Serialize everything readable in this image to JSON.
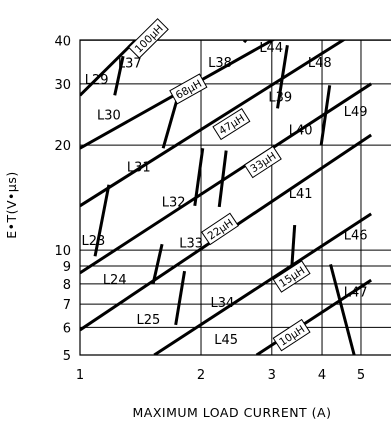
{
  "chart_data": {
    "type": "nomograph",
    "xlabel": "MAXIMUM LOAD CURRENT (A)",
    "ylabel": "E•T(V•µs)",
    "x_scale": "log",
    "y_scale": "log",
    "xlim": [
      1,
      5
    ],
    "ylim": [
      5,
      40
    ],
    "x_ticks": [
      {
        "value": 1,
        "label": "1"
      },
      {
        "value": 2,
        "label": "2"
      },
      {
        "value": 3,
        "label": "3"
      },
      {
        "value": 4,
        "label": "4"
      },
      {
        "value": 5,
        "label": "5"
      }
    ],
    "y_ticks": [
      {
        "value": 5,
        "label": "5"
      },
      {
        "value": 6,
        "label": "6"
      },
      {
        "value": 7,
        "label": "7"
      },
      {
        "value": 8,
        "label": "8"
      },
      {
        "value": 9,
        "label": "9"
      },
      {
        "value": 10,
        "label": "10"
      },
      {
        "value": 20,
        "label": "20"
      },
      {
        "value": 30,
        "label": "30"
      },
      {
        "value": 40,
        "label": "40"
      }
    ],
    "grid": true,
    "inductance_lines": [
      {
        "label": "100µH",
        "from": [
          1.0,
          27.8
        ],
        "to": [
          1.45,
          42.5
        ],
        "label_at": [
          1.48,
          40.5
        ]
      },
      {
        "label": "68µH",
        "from": [
          1.0,
          19.6
        ],
        "to": [
          3.3,
          42.5
        ],
        "label_at": [
          1.86,
          29.0
        ]
      },
      {
        "label": "47µH",
        "from": [
          1.0,
          13.4
        ],
        "to": [
          4.9,
          42.5
        ],
        "label_at": [
          2.38,
          23.0
        ]
      },
      {
        "label": "33µH",
        "from": [
          1.0,
          8.6
        ],
        "to": [
          5.3,
          30.0
        ],
        "label_at": [
          2.85,
          17.9
        ]
      },
      {
        "label": "22µH",
        "from": [
          1.0,
          5.9
        ],
        "to": [
          5.3,
          21.4
        ],
        "label_at": [
          2.23,
          11.5
        ]
      },
      {
        "label": "15µH",
        "from": [
          1.53,
          5.0
        ],
        "to": [
          5.3,
          12.7
        ],
        "label_at": [
          3.36,
          8.4
        ]
      },
      {
        "label": "10µH",
        "from": [
          2.75,
          5.0
        ],
        "to": [
          5.3,
          8.2
        ],
        "label_at": [
          3.36,
          5.7
        ]
      }
    ],
    "region_dividers": [
      {
        "from": [
          1.22,
          27.8
        ],
        "to": [
          1.28,
          36.0
        ]
      },
      {
        "from": [
          1.61,
          19.6
        ],
        "to": [
          1.78,
          29.4
        ]
      },
      {
        "from": [
          2.56,
          39.5
        ],
        "to": [
          2.7,
          42.5
        ]
      },
      {
        "from": [
          1.93,
          13.4
        ],
        "to": [
          2.02,
          19.6
        ]
      },
      {
        "from": [
          3.1,
          25.5
        ],
        "to": [
          3.28,
          38.7
        ]
      },
      {
        "from": [
          2.22,
          13.3
        ],
        "to": [
          2.31,
          19.3
        ]
      },
      {
        "from": [
          3.98,
          20.0
        ],
        "to": [
          4.18,
          29.7
        ]
      },
      {
        "from": [
          1.09,
          9.6
        ],
        "to": [
          1.18,
          15.4
        ]
      },
      {
        "from": [
          1.52,
          8.0
        ],
        "to": [
          1.6,
          10.4
        ]
      },
      {
        "from": [
          1.73,
          6.1
        ],
        "to": [
          1.82,
          8.7
        ]
      },
      {
        "from": [
          3.34,
          7.9
        ],
        "to": [
          3.42,
          11.8
        ]
      },
      {
        "from": [
          4.2,
          9.1
        ],
        "to": [
          4.9,
          4.6
        ]
      }
    ],
    "regions": [
      {
        "label": "L29",
        "x": 1.1,
        "y": 31.0
      },
      {
        "label": "L37",
        "x": 1.33,
        "y": 34.5
      },
      {
        "label": "L38",
        "x": 2.23,
        "y": 34.6
      },
      {
        "label": "L44",
        "x": 2.99,
        "y": 38.2
      },
      {
        "label": "L48",
        "x": 3.95,
        "y": 34.6
      },
      {
        "label": "L30",
        "x": 1.18,
        "y": 24.5
      },
      {
        "label": "L39",
        "x": 3.15,
        "y": 27.6
      },
      {
        "label": "L49",
        "x": 4.85,
        "y": 25.1
      },
      {
        "label": "L40",
        "x": 3.54,
        "y": 22.2
      },
      {
        "label": "L31",
        "x": 1.4,
        "y": 17.4
      },
      {
        "label": "L32",
        "x": 1.71,
        "y": 13.8
      },
      {
        "label": "L41",
        "x": 3.54,
        "y": 14.6
      },
      {
        "label": "L46",
        "x": 4.85,
        "y": 11.1
      },
      {
        "label": "L23",
        "x": 1.08,
        "y": 10.7
      },
      {
        "label": "L33",
        "x": 1.89,
        "y": 10.5
      },
      {
        "label": "L24",
        "x": 1.22,
        "y": 8.25
      },
      {
        "label": "L34",
        "x": 2.26,
        "y": 7.1
      },
      {
        "label": "L47",
        "x": 4.85,
        "y": 7.6
      },
      {
        "label": "L25",
        "x": 1.48,
        "y": 6.35
      },
      {
        "label": "L45",
        "x": 2.31,
        "y": 5.55
      }
    ]
  }
}
